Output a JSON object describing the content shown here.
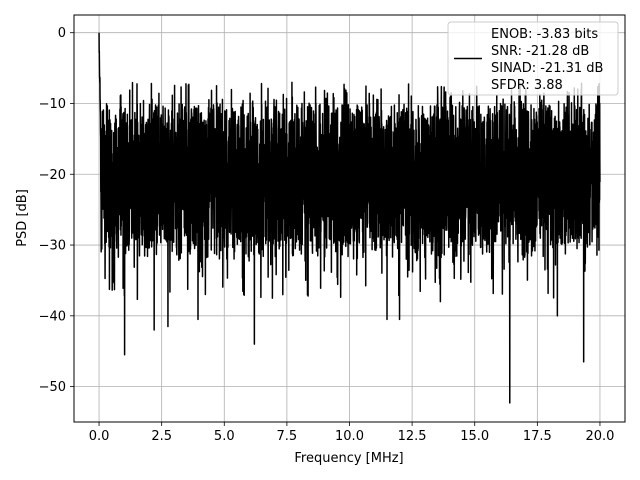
{
  "chart_data": {
    "type": "line",
    "xlabel": "Frequency [MHz]",
    "ylabel": "PSD [dB]",
    "xlim": [
      -1.0,
      21.0
    ],
    "ylim": [
      -55.0,
      2.5
    ],
    "x_ticks": [
      0.0,
      2.5,
      5.0,
      7.5,
      10.0,
      12.5,
      15.0,
      17.5,
      20.0
    ],
    "x_tick_labels": [
      "0.0",
      "2.5",
      "5.0",
      "7.5",
      "10.0",
      "12.5",
      "15.0",
      "17.5",
      "20.0"
    ],
    "y_ticks": [
      0,
      -10,
      -20,
      -30,
      -40,
      -50
    ],
    "y_tick_labels": [
      "0",
      "−10",
      "−20",
      "−30",
      "−40",
      "−50"
    ],
    "grid": true,
    "legend_position": "top-right",
    "series": [
      {
        "color": "#000000",
        "x_range": [
          0.0,
          20.0
        ],
        "noise_floor_band": [
          -30,
          -10
        ],
        "peak": {
          "x": 0.0,
          "y": 0.0
        },
        "notable_minima": [
          {
            "x": 1.02,
            "y": -45.5
          },
          {
            "x": 2.2,
            "y": -42.0
          },
          {
            "x": 2.75,
            "y": -41.5
          },
          {
            "x": 3.95,
            "y": -40.5
          },
          {
            "x": 6.2,
            "y": -44.0
          },
          {
            "x": 11.5,
            "y": -40.5
          },
          {
            "x": 12.0,
            "y": -40.5
          },
          {
            "x": 16.4,
            "y": -52.3
          },
          {
            "x": 18.3,
            "y": -40.0
          },
          {
            "x": 19.35,
            "y": -46.5
          }
        ]
      }
    ],
    "legend": {
      "entries": [
        "ENOB: -3.83 bits",
        "SNR: -21.28 dB",
        "SINAD: -21.31 dB",
        "SFDR: 3.88"
      ]
    }
  }
}
